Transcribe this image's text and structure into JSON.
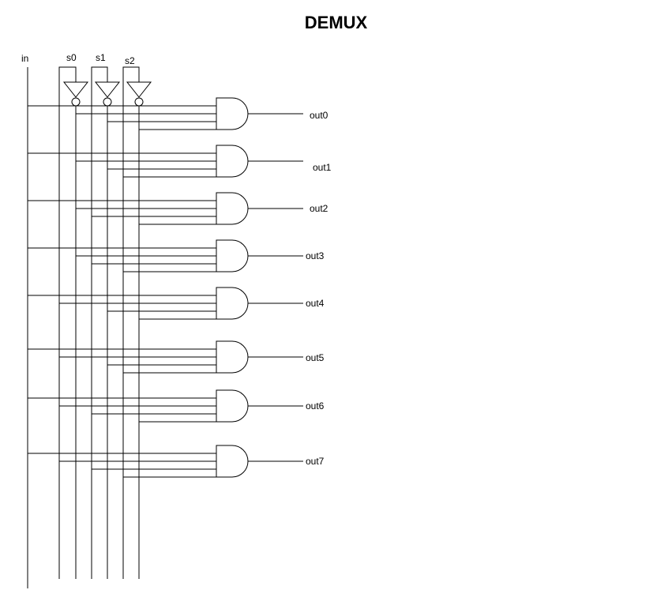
{
  "title": "DEMUX",
  "inputs": {
    "in": "in",
    "s0": "s0",
    "s1": "s1",
    "s2": "s2"
  },
  "outputs": [
    "out0",
    "out1",
    "out2",
    "out3",
    "out4",
    "out5",
    "out6",
    "out7"
  ],
  "colors": {
    "stroke": "#000000",
    "background": "#ffffff"
  },
  "icons": {
    "inverter": "not-gate-icon",
    "and": "and-gate-icon"
  }
}
